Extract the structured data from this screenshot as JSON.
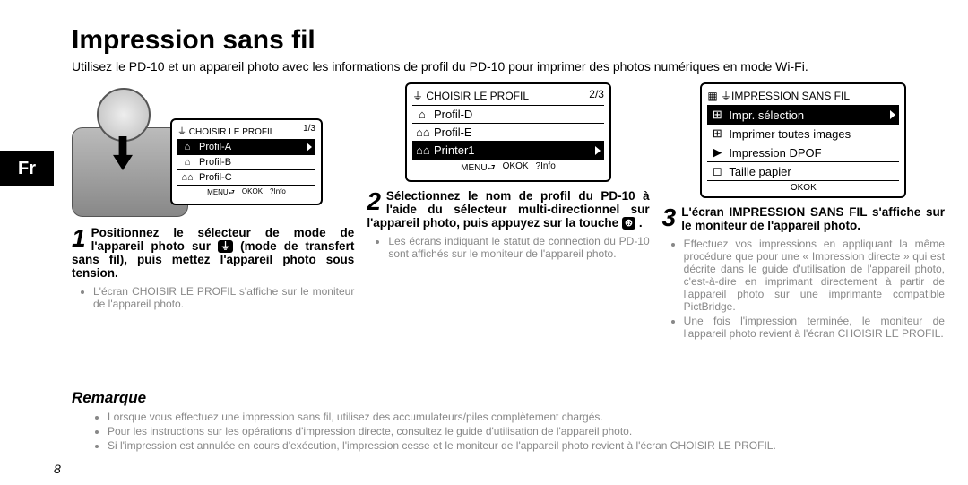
{
  "title": "Impression sans fil",
  "intro": "Utilisez le PD-10 et un appareil photo avec les informations de profil du PD-10 pour imprimer des photos numériques en mode Wi-Fi.",
  "lang_tab": "Fr",
  "page_number": "8",
  "screen1": {
    "title_left": "⏚ CHOISIR LE PROFIL",
    "title_right": "1/3",
    "rows": [
      {
        "icon": "⌂",
        "label": "Profil-A",
        "selected": true
      },
      {
        "icon": "⌂",
        "label": "Profil-B",
        "selected": false
      },
      {
        "icon": "⌂⌂",
        "label": "Profil-C",
        "selected": false
      }
    ],
    "foot": [
      "MENU⮐",
      "OKOK",
      "?Info"
    ]
  },
  "screen2": {
    "title_left": "⏚ CHOISIR LE PROFIL",
    "title_right": "2/3",
    "rows": [
      {
        "icon": "⌂",
        "label": "Profil-D",
        "selected": false
      },
      {
        "icon": "⌂⌂",
        "label": "Profil-E",
        "selected": false
      },
      {
        "icon": "⌂⌂",
        "label": "Printer1",
        "selected": true
      }
    ],
    "foot": [
      "MENU⮐",
      "OKOK",
      "?Info"
    ]
  },
  "screen3": {
    "title_left": "▦ ⏚IMPRESSION SANS FIL",
    "title_right": "",
    "rows": [
      {
        "icon": "⊞",
        "label": "Impr. sélection",
        "selected": true
      },
      {
        "icon": "⊞",
        "label": "Imprimer toutes images",
        "selected": false
      },
      {
        "icon": "▶",
        "label": "Impression DPOF",
        "selected": false
      },
      {
        "icon": "◻",
        "label": "Taille papier",
        "selected": false
      }
    ],
    "foot": [
      "OKOK"
    ]
  },
  "steps": {
    "s1": {
      "num": "1",
      "bold_a": "Positionnez le sélecteur de mode de l'appareil photo sur ",
      "bold_sym": "⏚",
      "bold_b": " (mode de transfert sans fil), puis mettez l'appareil photo sous tension.",
      "bullets": [
        "L'écran CHOISIR LE PROFIL s'affiche sur le moniteur de l'appareil photo."
      ]
    },
    "s2": {
      "num": "2",
      "bold_a": "Sélectionnez le nom de profil du PD-10 à l'aide du sélecteur multi-directionnel sur l'appareil photo, puis appuyez sur la touche ",
      "bold_sym": "⊛",
      "bold_b": ".",
      "bullets": [
        "Les écrans indiquant le statut de connection du PD-10 sont affichés sur le moniteur de l'appareil photo."
      ]
    },
    "s3": {
      "num": "3",
      "bold_a": "L'écran IMPRESSION SANS FIL s'affiche sur le moniteur de l'appareil photo.",
      "bullets": [
        "Effectuez vos impressions en appliquant la même procédure que pour une « Impression directe » qui est décrite dans le guide d'utilisation de l'appareil photo, c'est-à-dire en imprimant directement à partir de l'appareil photo sur une imprimante compatible PictBridge.",
        "Une fois l'impression terminée, le moniteur de l'appareil photo revient à l'écran CHOISIR LE PROFIL."
      ]
    }
  },
  "remarque": {
    "title": "Remarque",
    "items": [
      "Lorsque vous effectuez une impression sans fil, utilisez des accumulateurs/piles complètement chargés.",
      "Pour les instructions sur les opérations d'impression directe, consultez le guide d'utilisation de l'appareil photo.",
      "Si l'impression est annulée en cours d'exécution, l'impression cesse et le moniteur de l'appareil photo revient à l'écran CHOISIR LE PROFIL."
    ]
  }
}
